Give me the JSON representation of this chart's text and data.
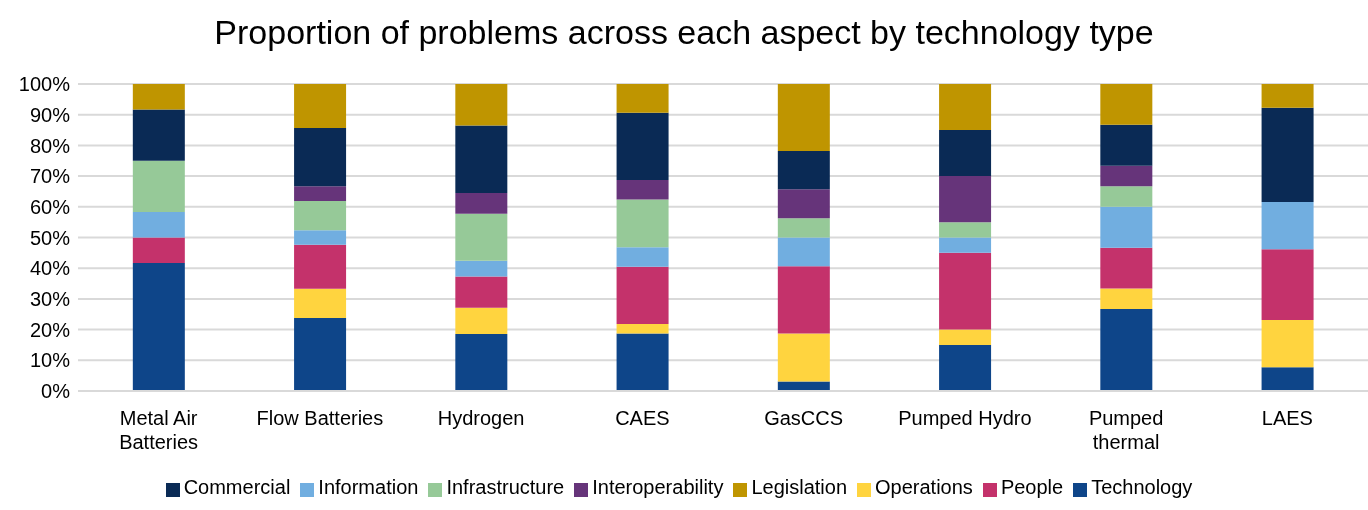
{
  "chart_data": {
    "type": "bar",
    "title": "Proportion of problems across each aspect by technology type",
    "categories": [
      "Metal Air\nBatteries",
      "Flow Batteries",
      "Hydrogen",
      "CAES",
      "GasCCS",
      "Pumped Hydro",
      "Pumped\nthermal",
      "LAES"
    ],
    "stacked": true,
    "series": [
      {
        "name": "Technology",
        "color": "#0e4589",
        "values": [
          41.7,
          23.8,
          18.6,
          18.7,
          3.1,
          15,
          26.7,
          7.7
        ]
      },
      {
        "name": "Operations",
        "color": "#ffd43f",
        "values": [
          0,
          9.5,
          8.5,
          3.1,
          15.6,
          5,
          6.7,
          15.4
        ]
      },
      {
        "name": "People",
        "color": "#c4326b",
        "values": [
          8.3,
          14.3,
          10.2,
          18.7,
          21.9,
          25,
          13.3,
          23.1
        ]
      },
      {
        "name": "Information",
        "color": "#71aee0",
        "values": [
          8.3,
          4.8,
          5.1,
          6.3,
          9.4,
          5,
          13.3,
          15.4
        ]
      },
      {
        "name": "Infrastructure",
        "color": "#96c998",
        "values": [
          16.7,
          9.5,
          15.3,
          15.6,
          6.3,
          5,
          6.7,
          0
        ]
      },
      {
        "name": "Interoperability",
        "color": "#66347a",
        "values": [
          0,
          4.8,
          6.8,
          6.3,
          9.4,
          15,
          6.7,
          0
        ]
      },
      {
        "name": "Commercial",
        "color": "#0a2a55",
        "values": [
          16.7,
          19,
          22,
          21.9,
          12.5,
          15,
          13.3,
          30.7
        ]
      },
      {
        "name": "Legislation",
        "color": "#bf9500",
        "values": [
          8.3,
          14.3,
          13.5,
          9.4,
          21.8,
          15,
          13.3,
          7.7
        ]
      }
    ],
    "ylim": [
      0,
      100
    ],
    "yticks": [
      {
        "value": 0,
        "label": "0%"
      },
      {
        "value": 10,
        "label": "10%"
      },
      {
        "value": 20,
        "label": "20%"
      },
      {
        "value": 30,
        "label": "30%"
      },
      {
        "value": 40,
        "label": "40%"
      },
      {
        "value": 50,
        "label": "50%"
      },
      {
        "value": 60,
        "label": "60%"
      },
      {
        "value": 70,
        "label": "70%"
      },
      {
        "value": 80,
        "label": "80%"
      },
      {
        "value": 90,
        "label": "90%"
      },
      {
        "value": 100,
        "label": "100%"
      }
    ],
    "grid": "y",
    "legend": "bottom"
  }
}
